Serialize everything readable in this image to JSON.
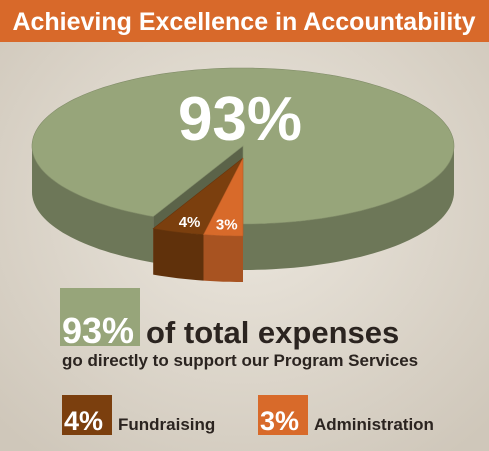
{
  "chart_data": {
    "type": "pie",
    "title": "Achieving Excellence in Accountability",
    "categories": [
      "of total expenses",
      "Fundraising",
      "Administration"
    ],
    "values": [
      93,
      4,
      3
    ],
    "value_labels": [
      "93%",
      "4%",
      "3%"
    ],
    "colors": [
      "#97a57a",
      "#7b3f0e",
      "#d86a2a"
    ],
    "note": "go directly to support our Program Services"
  }
}
